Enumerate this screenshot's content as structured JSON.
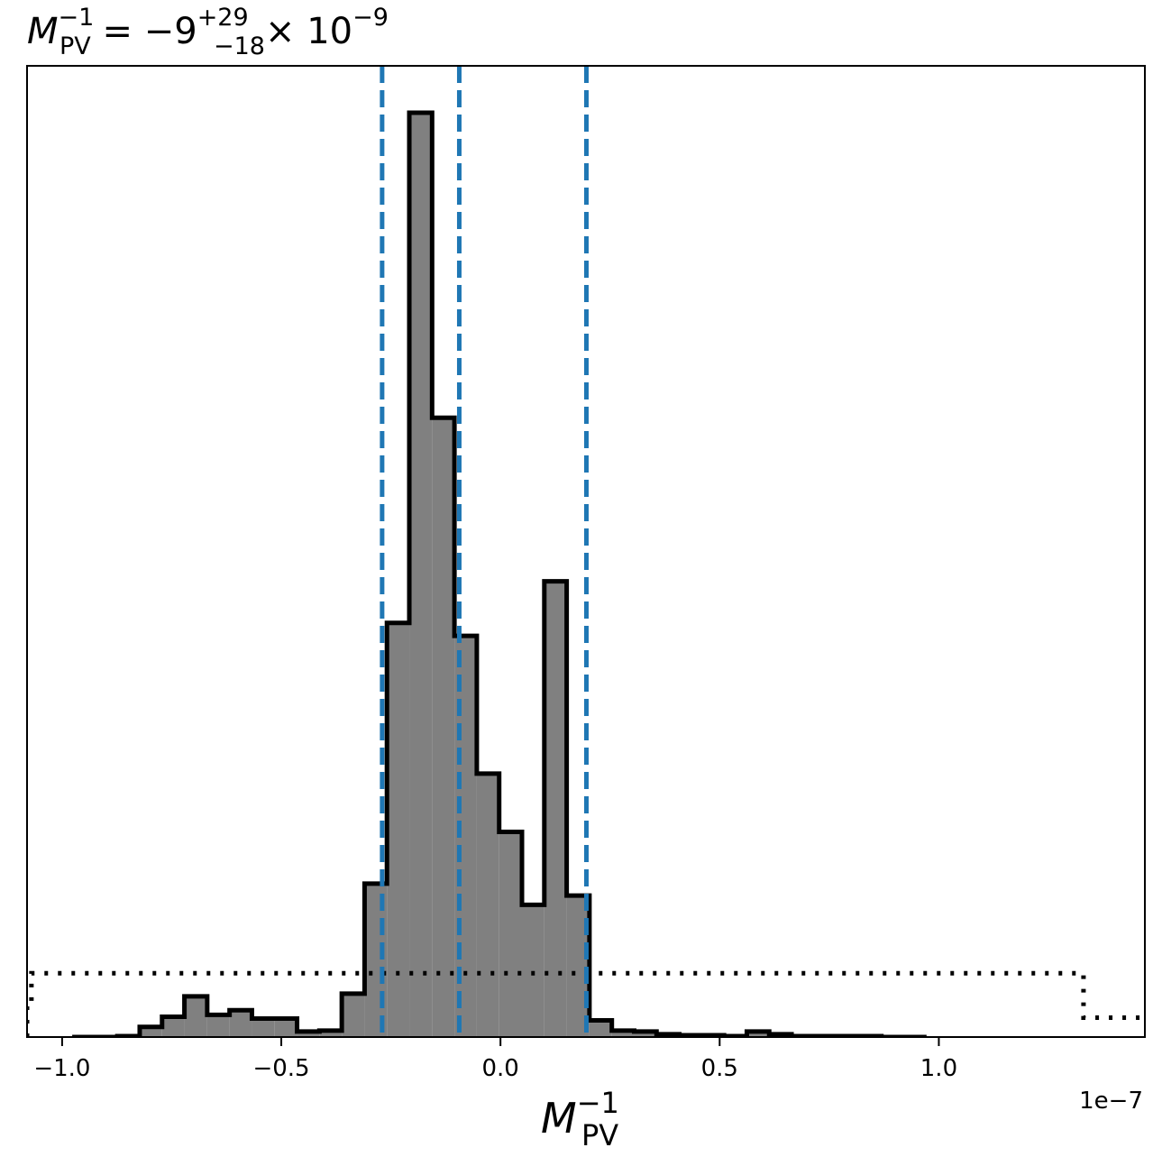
{
  "chart_data": {
    "type": "histogram",
    "title": {
      "symbol": "M",
      "symbol_sup": "−1",
      "symbol_sub": "PV",
      "equals": " = ",
      "median": "−9",
      "err_plus": "+29",
      "err_minus": "−18",
      "multiplier": "× 10",
      "exponent": "−9"
    },
    "xlabel": {
      "symbol": "M",
      "sup": "−1",
      "sub": "PV"
    },
    "x_offset_label": "1e−7",
    "xlim": [
      -1.08,
      1.47
    ],
    "ylim": [
      0,
      1.0
    ],
    "x_ticks": [
      {
        "value": -1.0,
        "label": "−1.0"
      },
      {
        "value": -0.5,
        "label": "−0.5"
      },
      {
        "value": 0.0,
        "label": "0.0"
      },
      {
        "value": 0.5,
        "label": "0.5"
      },
      {
        "value": 1.0,
        "label": "1.0"
      }
    ],
    "bin_edges": [
      -0.977,
      -0.926,
      -0.874,
      -0.823,
      -0.772,
      -0.721,
      -0.669,
      -0.618,
      -0.567,
      -0.515,
      -0.464,
      -0.413,
      -0.362,
      -0.31,
      -0.259,
      -0.208,
      -0.156,
      -0.105,
      -0.054,
      -0.003,
      0.049,
      0.1,
      0.151,
      0.203,
      0.254,
      0.305,
      0.356,
      0.408,
      0.459,
      0.51,
      0.562,
      0.613,
      0.664,
      0.715,
      0.767,
      0.818,
      0.869,
      0.921,
      0.972
    ],
    "posterior_counts": [
      0,
      0,
      0.001,
      0.011,
      0.022,
      0.044,
      0.024,
      0.029,
      0.02,
      0.02,
      0.006,
      0.007,
      0.047,
      0.166,
      0.448,
      1.0,
      0.67,
      0.434,
      0.285,
      0.222,
      0.143,
      0.493,
      0.153,
      0.018,
      0.007,
      0.006,
      0.003,
      0.002,
      0.002,
      0.001,
      0.006,
      0.003,
      0.001,
      0.001,
      0.001,
      0.001,
      0,
      0
    ],
    "prior_bin_edges": [
      -1.08,
      -1.07,
      1.33,
      1.47
    ],
    "prior_levels": [
      0.035,
      0.069,
      0.021
    ],
    "quantile_lines": [
      -0.27,
      -0.094,
      0.196
    ],
    "colors": {
      "histogram_fill": "#808080",
      "histogram_edge": "#000000",
      "quantile_line": "#1f77b4",
      "prior_line": "#000000"
    },
    "grid": false,
    "y_tick_labels_shown": false
  }
}
